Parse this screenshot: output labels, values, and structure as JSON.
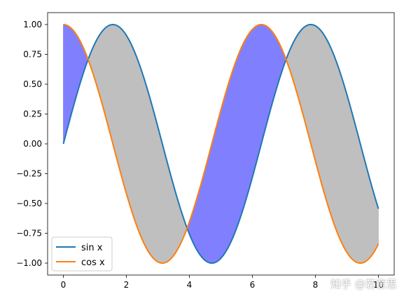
{
  "chart_data": {
    "type": "line",
    "x_range": [
      0,
      10
    ],
    "x_ticks": [
      0,
      2,
      4,
      6,
      8,
      10
    ],
    "y_ticks": [
      -1.0,
      -0.75,
      -0.5,
      -0.25,
      0.0,
      0.25,
      0.5,
      0.75,
      1.0
    ],
    "x_tick_labels": [
      "0",
      "2",
      "4",
      "6",
      "8",
      "10"
    ],
    "y_tick_labels": [
      "−1.00",
      "−0.75",
      "−0.50",
      "−0.25",
      "0.00",
      "0.25",
      "0.50",
      "0.75",
      "1.00"
    ],
    "xlim": [
      -0.5,
      10.5
    ],
    "ylim": [
      -1.1,
      1.1
    ],
    "grid": false,
    "series": [
      {
        "name": "sin x",
        "function": "sin",
        "color": "#1f77b4"
      },
      {
        "name": "cos x",
        "function": "cos",
        "color": "#ff7f0e"
      }
    ],
    "fill_between": {
      "where_cos_above_sin": "#8080ff",
      "where_sin_above_cos": "#bfbfbf"
    },
    "legend": {
      "placement": "lower-left",
      "entries": [
        "sin x",
        "cos x"
      ]
    },
    "title": "",
    "xlabel": "",
    "ylabel": ""
  },
  "watermark": "知乎 @若意思"
}
